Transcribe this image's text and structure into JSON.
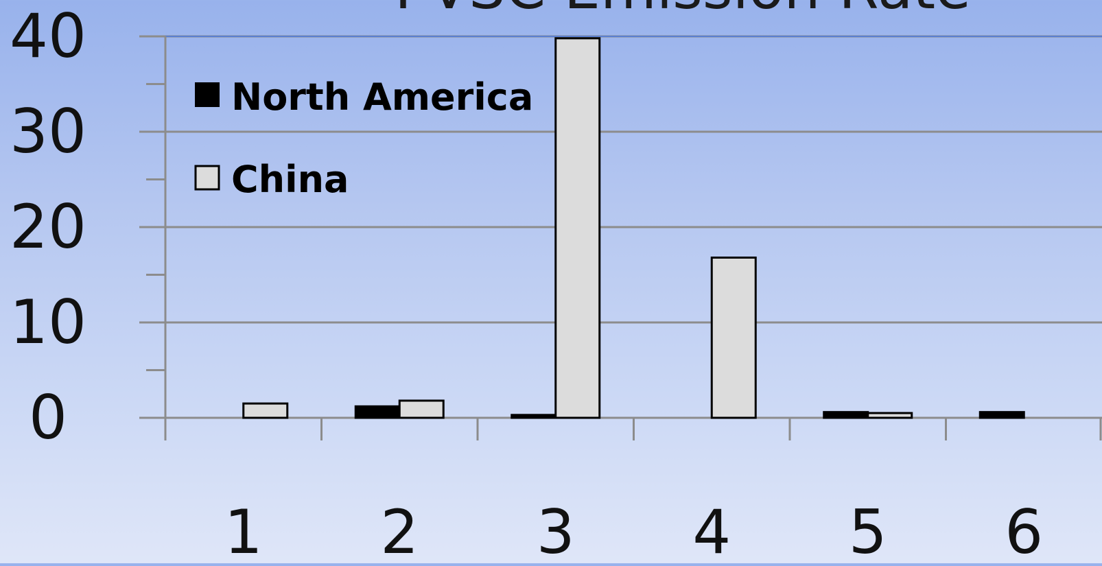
{
  "chart_data": {
    "type": "bar",
    "title": "PVSC Emission Rate",
    "categories": [
      "1",
      "2",
      "3",
      "4",
      "5",
      "6"
    ],
    "series": [
      {
        "name": "North America",
        "values": [
          0,
          1.2,
          0.3,
          0,
          0.6,
          0.6
        ],
        "color": "#000000"
      },
      {
        "name": "China",
        "values": [
          1.5,
          1.8,
          39.8,
          16.8,
          0.5,
          0
        ],
        "color": "#dcdcdc"
      }
    ],
    "y_ticks": [
      "0",
      "10",
      "20",
      "30",
      "40"
    ],
    "ylim": [
      0,
      40
    ],
    "grid": true,
    "legend_position": "top-left",
    "colors": {
      "background_top": "#98b2ec",
      "background_bottom": "#dfe6f8",
      "gridline": "#8c8c8c",
      "axis": "#8c8c8c",
      "bar_outline": "#000000"
    }
  }
}
